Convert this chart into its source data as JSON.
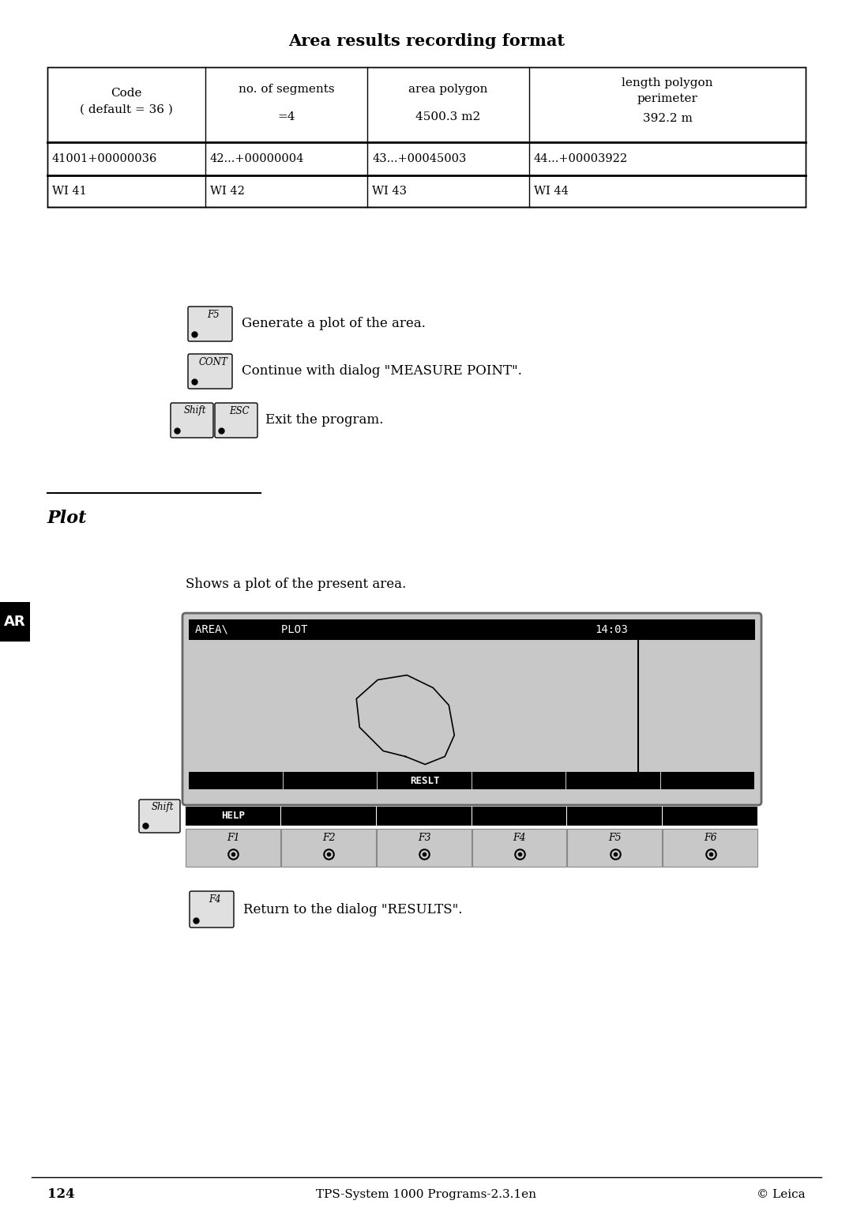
{
  "title": "Area results recording format",
  "bg_color": "#ffffff",
  "table": {
    "col_headers": [
      "Code\n( default = 36 )",
      "no. of segments",
      "area polygon",
      "length polygon\nperimeter"
    ],
    "row1_vals": [
      "",
      "=4",
      "4500.3 m2",
      "392.2 m"
    ],
    "row2": [
      "41001+00000036",
      "42...+00000004",
      "43...+00045003",
      "44...+00003922"
    ],
    "row3": [
      "WI 41",
      "WI 42",
      "WI 43",
      "WI 44"
    ]
  },
  "section_title": "Plot",
  "section_desc": "Shows a plot of the present area.",
  "screen": {
    "header_left": "AREA\\        PLOT",
    "time": "14:03",
    "statusbar_label": "RESLT",
    "helpbar_label": "HELP",
    "fkeys": [
      "F1",
      "F2",
      "F3",
      "F4",
      "F5",
      "F6"
    ]
  },
  "footer": {
    "page": "124",
    "center": "TPS-System 1000 Programs-2.3.1en",
    "right": "© Leica"
  },
  "ar_label": "AR"
}
